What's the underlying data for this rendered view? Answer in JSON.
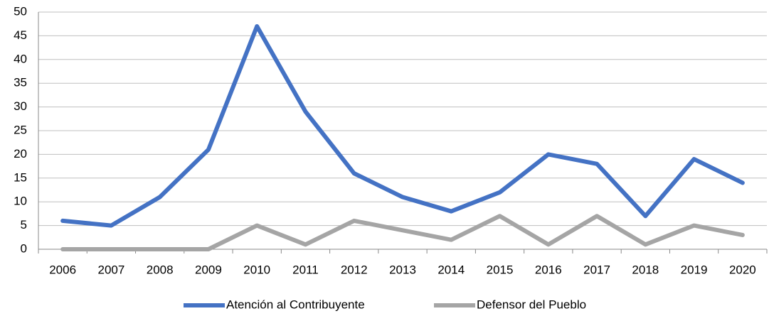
{
  "chart_data": {
    "type": "line",
    "categories": [
      "2006",
      "2007",
      "2008",
      "2009",
      "2010",
      "2011",
      "2012",
      "2013",
      "2014",
      "2015",
      "2016",
      "2017",
      "2018",
      "2019",
      "2020"
    ],
    "series": [
      {
        "name": "Atención al Contribuyente",
        "color": "#4472c4",
        "values": [
          6,
          5,
          11,
          21,
          47,
          29,
          16,
          11,
          8,
          12,
          20,
          18,
          7,
          19,
          14
        ]
      },
      {
        "name": "Defensor del Pueblo",
        "color": "#a5a5a5",
        "values": [
          0,
          0,
          0,
          0,
          5,
          1,
          6,
          4,
          2,
          7,
          1,
          7,
          1,
          5,
          3
        ]
      }
    ],
    "ylim": [
      0,
      50
    ],
    "yticks": [
      0,
      5,
      10,
      15,
      20,
      25,
      30,
      35,
      40,
      45,
      50
    ],
    "grid": true,
    "legend": "bottom"
  }
}
